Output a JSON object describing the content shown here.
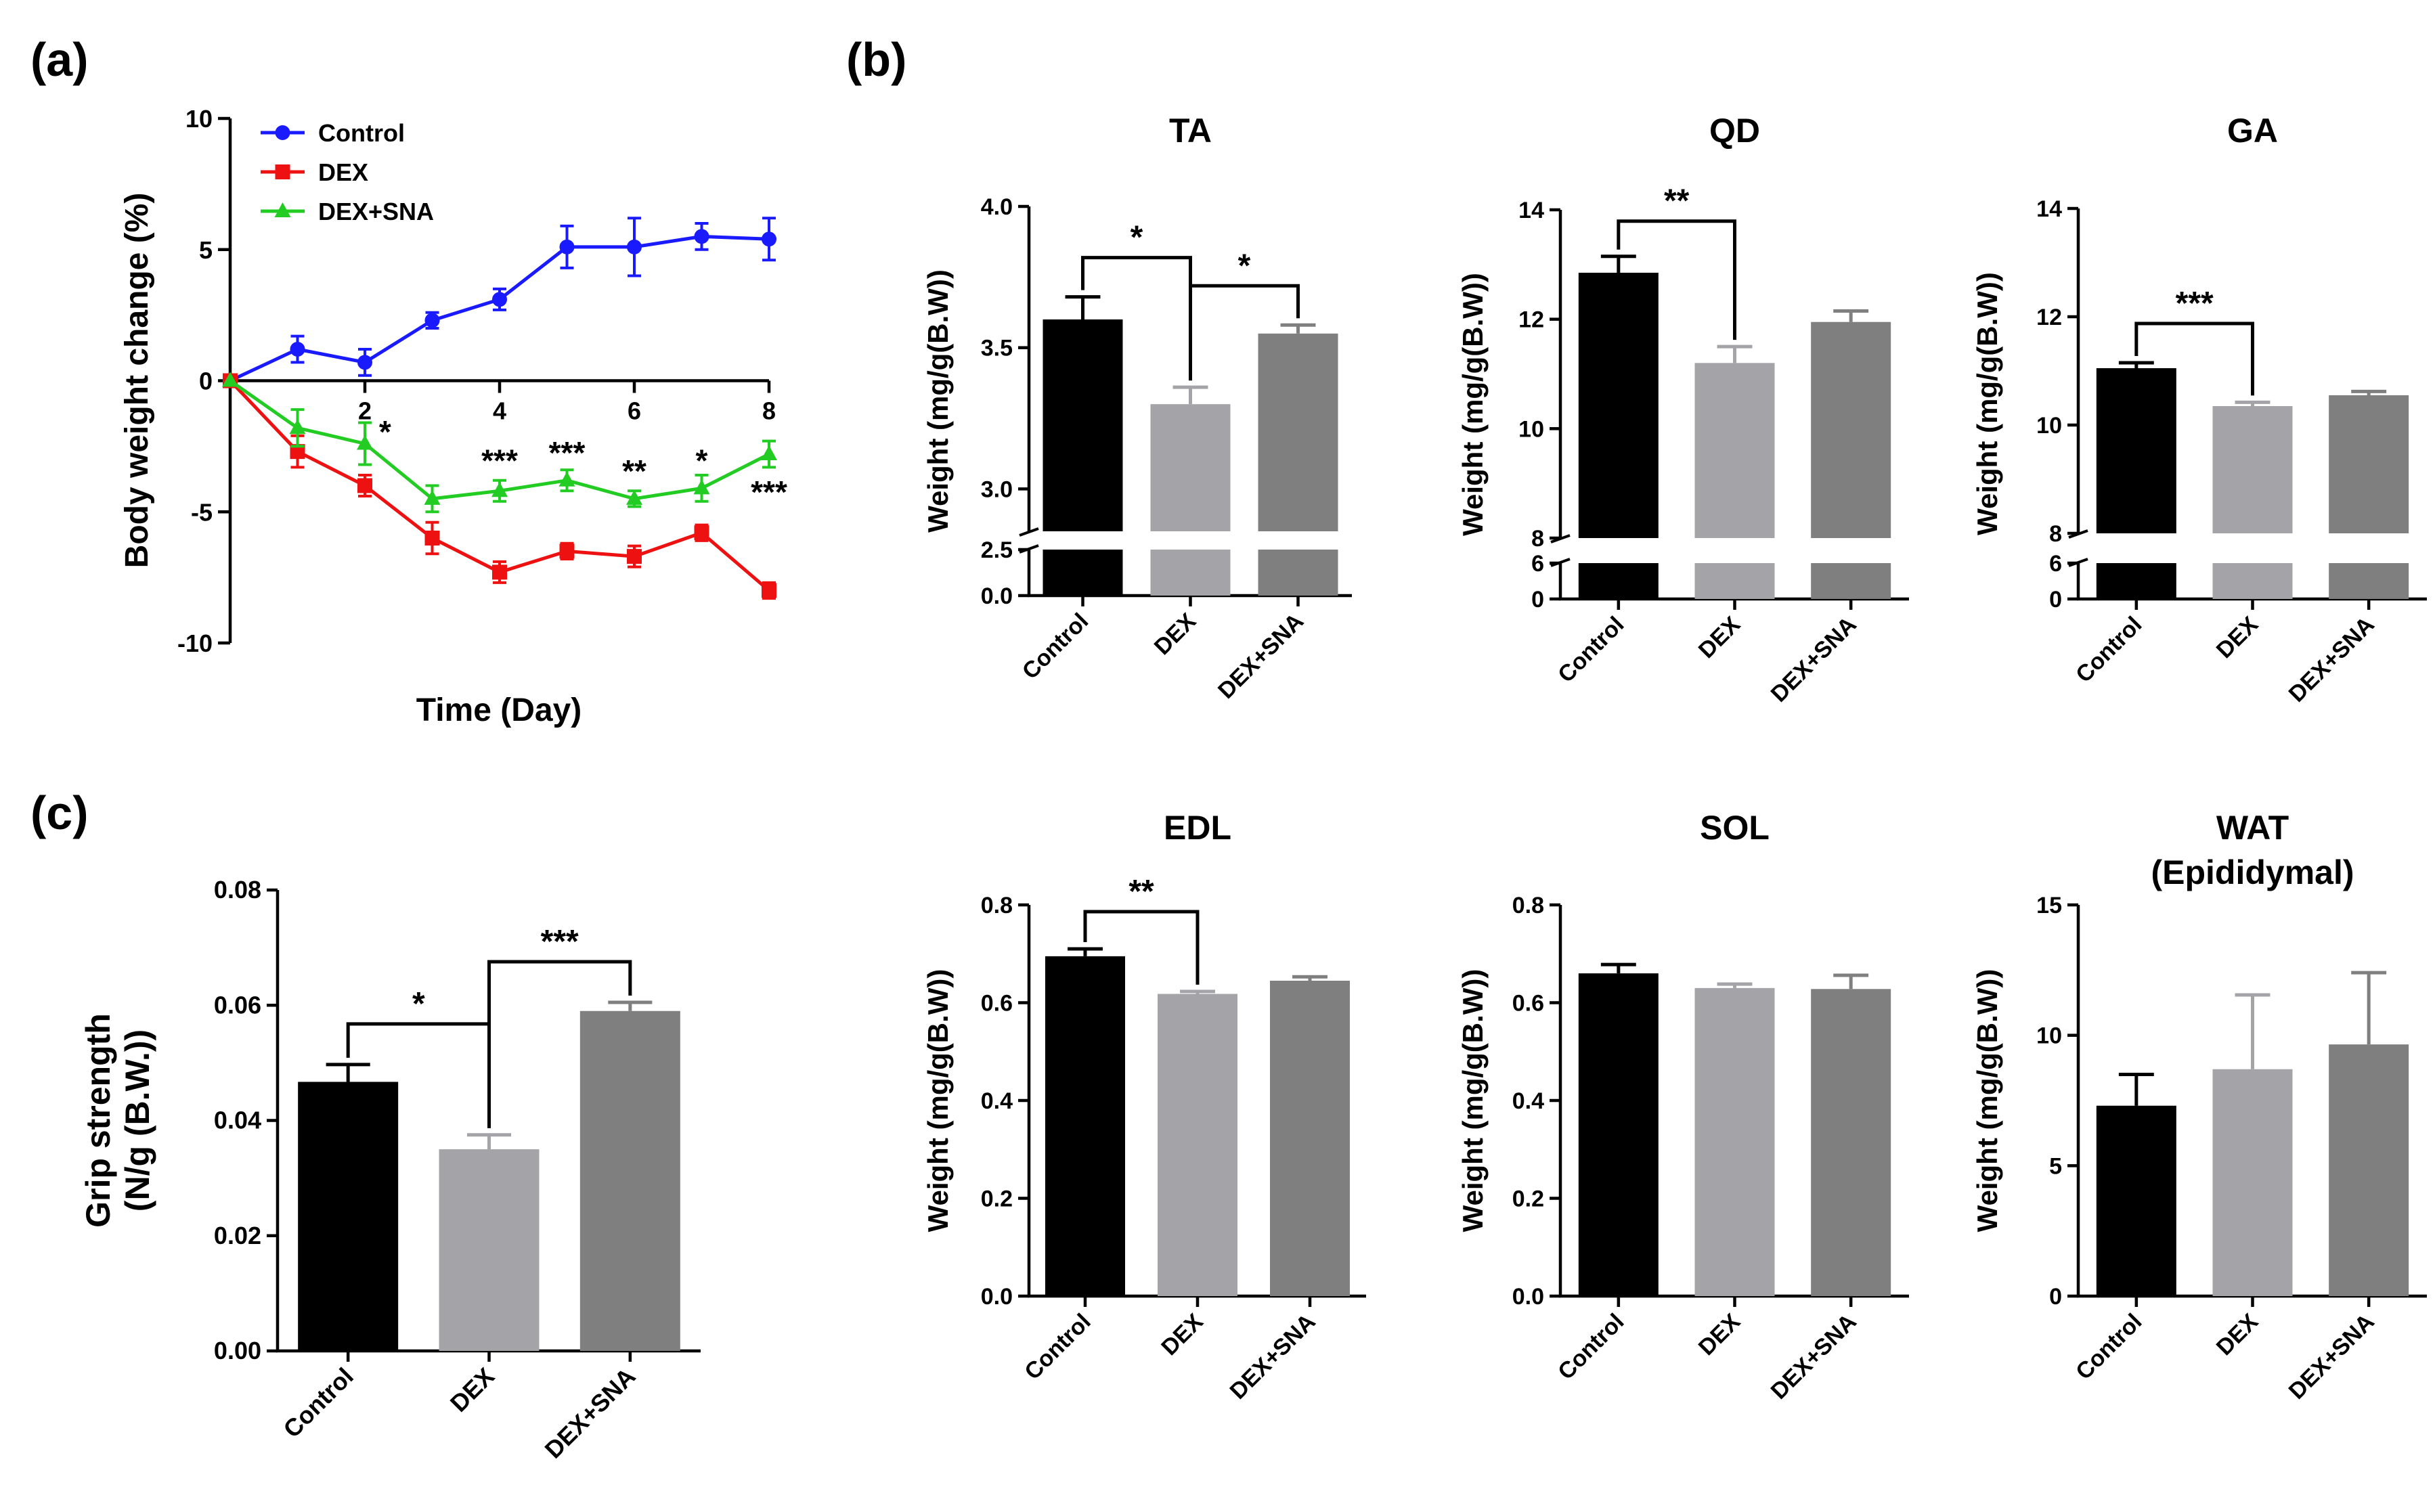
{
  "chart_data": [
    {
      "id": "a",
      "panel_label": "(a)",
      "type": "line",
      "title": "",
      "xlabel": "Time (Day)",
      "ylabel": "Body weight change (%)",
      "xlim": [
        0,
        8
      ],
      "ylim": [
        -10,
        10
      ],
      "xticks": [
        2,
        4,
        6,
        8
      ],
      "xtick_labels": [
        "2",
        "4",
        "6",
        "8"
      ],
      "yticks": [
        -10,
        -5,
        0,
        5,
        10
      ],
      "ytick_labels": [
        "-10",
        "-5",
        "0",
        "5",
        "10"
      ],
      "legend_position": "top-left",
      "x": [
        0,
        1,
        2,
        3,
        4,
        5,
        6,
        7,
        8
      ],
      "series": [
        {
          "name": "Control",
          "color": "#1a1aff",
          "marker": "circle",
          "values": [
            0,
            1.2,
            0.7,
            2.3,
            3.1,
            5.1,
            5.1,
            5.5,
            5.4
          ],
          "errors": [
            0,
            0.5,
            0.5,
            0.3,
            0.4,
            0.8,
            1.1,
            0.5,
            0.8
          ]
        },
        {
          "name": "DEX",
          "color": "#ee1111",
          "marker": "square",
          "values": [
            0,
            -2.7,
            -4.0,
            -6.0,
            -7.3,
            -6.5,
            -6.7,
            -5.8,
            -8.0
          ],
          "errors": [
            0,
            0.6,
            0.4,
            0.6,
            0.4,
            0.3,
            0.4,
            0.3,
            0.3
          ]
        },
        {
          "name": "DEX+SNA",
          "color": "#22cc22",
          "marker": "triangle",
          "values": [
            0,
            -1.8,
            -2.4,
            -4.5,
            -4.2,
            -3.8,
            -4.5,
            -4.1,
            -2.8
          ],
          "errors": [
            0,
            0.7,
            0.8,
            0.5,
            0.4,
            0.4,
            0.3,
            0.5,
            0.5
          ]
        }
      ],
      "annotations": [
        {
          "x": 2.3,
          "y": -2.0,
          "text": "*"
        },
        {
          "x": 4.0,
          "y": -3.1,
          "text": "***"
        },
        {
          "x": 5.0,
          "y": -2.8,
          "text": "***"
        },
        {
          "x": 6.0,
          "y": -3.5,
          "text": "**"
        },
        {
          "x": 7.0,
          "y": -3.1,
          "text": "*"
        },
        {
          "x": 8.0,
          "y": -4.3,
          "text": "***"
        }
      ]
    },
    {
      "id": "TA",
      "panel_label": "(b)",
      "type": "bar",
      "title": "TA",
      "ylabel": "Weight (mg/g(B.W))",
      "categories": [
        "Control",
        "DEX",
        "DEX+SNA"
      ],
      "values": [
        3.6,
        3.3,
        3.55
      ],
      "errors": [
        0.08,
        0.06,
        0.03
      ],
      "bar_colors": [
        "#000000",
        "#a3a3a8",
        "#7f7f7f"
      ],
      "y_break": {
        "upper": [
          2.85,
          4.0
        ],
        "lower": [
          0,
          2.5
        ]
      },
      "yticks_upper": [
        3.0,
        3.5,
        4.0
      ],
      "ytick_labels_upper": [
        "3.0",
        "3.5",
        "4.0"
      ],
      "yticks_lower": [
        0,
        2.5
      ],
      "ytick_labels_lower": [
        "0.0",
        "2.5"
      ],
      "significance": [
        {
          "from": 0,
          "to": 1,
          "text": "*"
        },
        {
          "from": 1,
          "to": 2,
          "text": "*"
        }
      ]
    },
    {
      "id": "QD",
      "type": "bar",
      "title": "QD",
      "ylabel": "Weight (mg/g(B.W))",
      "categories": [
        "Control",
        "DEX",
        "DEX+SNA"
      ],
      "values": [
        12.85,
        11.2,
        11.95
      ],
      "errors": [
        0.3,
        0.3,
        0.2
      ],
      "bar_colors": [
        "#000000",
        "#a3a3a8",
        "#7f7f7f"
      ],
      "y_break": {
        "upper": [
          8,
          14
        ],
        "lower": [
          0,
          6
        ]
      },
      "yticks_upper": [
        8,
        10,
        12,
        14
      ],
      "ytick_labels_upper": [
        "8",
        "10",
        "12",
        "14"
      ],
      "yticks_lower": [
        0,
        6
      ],
      "ytick_labels_lower": [
        "0",
        "6"
      ],
      "significance": [
        {
          "from": 0,
          "to": 1,
          "text": "**"
        }
      ]
    },
    {
      "id": "GA",
      "type": "bar",
      "title": "GA",
      "ylabel": "Weight (mg/g(B.W))",
      "categories": [
        "Control",
        "DEX",
        "DEX+SNA"
      ],
      "values": [
        11.05,
        10.35,
        10.55
      ],
      "errors": [
        0.1,
        0.07,
        0.07
      ],
      "bar_colors": [
        "#000000",
        "#a3a3a8",
        "#7f7f7f"
      ],
      "y_break": {
        "upper": [
          8,
          14
        ],
        "lower": [
          0,
          6
        ]
      },
      "yticks_upper": [
        8,
        10,
        12,
        14
      ],
      "ytick_labels_upper": [
        "8",
        "10",
        "12",
        "14"
      ],
      "yticks_lower": [
        0,
        6
      ],
      "ytick_labels_lower": [
        "0",
        "6"
      ],
      "significance": [
        {
          "from": 0,
          "to": 1,
          "text": "***"
        }
      ]
    },
    {
      "id": "c",
      "panel_label": "(c)",
      "type": "bar",
      "title": "",
      "ylabel": "Grip strength",
      "ylabel2": "(N/g (B.W.))",
      "categories": [
        "Control",
        "DEX",
        "DEX+SNA"
      ],
      "values": [
        0.0467,
        0.035,
        0.059
      ],
      "errors": [
        0.003,
        0.0025,
        0.0015
      ],
      "bar_colors": [
        "#000000",
        "#a3a3a8",
        "#7f7f7f"
      ],
      "ylim": [
        0,
        0.08
      ],
      "yticks": [
        0,
        0.02,
        0.04,
        0.06,
        0.08
      ],
      "ytick_labels": [
        "0.00",
        "0.02",
        "0.04",
        "0.06",
        "0.08"
      ],
      "significance": [
        {
          "from": 0,
          "to": 1,
          "text": "*"
        },
        {
          "from": 1,
          "to": 2,
          "text": "***"
        }
      ]
    },
    {
      "id": "EDL",
      "type": "bar",
      "title": "EDL",
      "ylabel": "Weight (mg/g(B.W))",
      "categories": [
        "Control",
        "DEX",
        "DEX+SNA"
      ],
      "values": [
        0.695,
        0.618,
        0.645
      ],
      "errors": [
        0.015,
        0.005,
        0.008
      ],
      "bar_colors": [
        "#000000",
        "#a3a3a8",
        "#7f7f7f"
      ],
      "ylim": [
        0,
        0.8
      ],
      "yticks": [
        0,
        0.2,
        0.4,
        0.6,
        0.8
      ],
      "ytick_labels": [
        "0.0",
        "0.2",
        "0.4",
        "0.6",
        "0.8"
      ],
      "significance": [
        {
          "from": 0,
          "to": 1,
          "text": "**"
        }
      ]
    },
    {
      "id": "SOL",
      "type": "bar",
      "title": "SOL",
      "ylabel": "Weight (mg/g(B.W))",
      "categories": [
        "Control",
        "DEX",
        "DEX+SNA"
      ],
      "values": [
        0.66,
        0.63,
        0.628
      ],
      "errors": [
        0.018,
        0.008,
        0.028
      ],
      "bar_colors": [
        "#000000",
        "#a3a3a8",
        "#7f7f7f"
      ],
      "ylim": [
        0,
        0.8
      ],
      "yticks": [
        0,
        0.2,
        0.4,
        0.6,
        0.8
      ],
      "ytick_labels": [
        "0.0",
        "0.2",
        "0.4",
        "0.6",
        "0.8"
      ],
      "significance": []
    },
    {
      "id": "WAT",
      "type": "bar",
      "title": "WAT",
      "title2": "(Epididymal)",
      "ylabel": "Weight (mg/g(B.W))",
      "categories": [
        "Control",
        "DEX",
        "DEX+SNA"
      ],
      "values": [
        7.3,
        8.7,
        9.65
      ],
      "errors": [
        1.2,
        2.85,
        2.75
      ],
      "bar_colors": [
        "#000000",
        "#a3a3a8",
        "#7f7f7f"
      ],
      "ylim": [
        0,
        15
      ],
      "yticks": [
        0,
        5,
        10,
        15
      ],
      "ytick_labels": [
        "0",
        "5",
        "10",
        "15"
      ],
      "significance": []
    }
  ]
}
